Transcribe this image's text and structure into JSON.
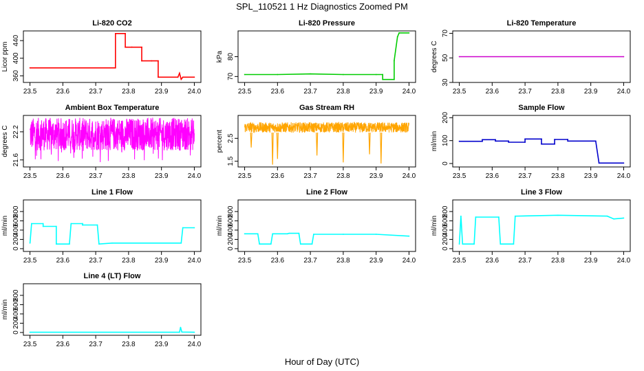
{
  "figure": {
    "title": "SPL_110521  1 Hz Diagnostics Zoomed PM",
    "xlabel": "Hour of Day (UTC)"
  },
  "chart_data": [
    {
      "type": "line",
      "title": "Li-820 CO2",
      "ylabel": "Licor ppm",
      "color": "#ff0000",
      "xlim": [
        23.5,
        24.0
      ],
      "x_ticks": [
        "23.5",
        "23.6",
        "23.7",
        "23.8",
        "23.9",
        "24.0"
      ],
      "ylim": [
        345,
        462
      ],
      "y_ticks": [
        360,
        400,
        440
      ],
      "x": [
        23.5,
        23.76,
        23.76,
        23.79,
        23.79,
        23.81,
        23.81,
        23.84,
        23.84,
        23.87,
        23.87,
        23.89,
        23.89,
        23.95,
        23.955,
        23.96,
        23.965,
        24.0
      ],
      "y": [
        378,
        378,
        456,
        456,
        425,
        425,
        425,
        425,
        394,
        394,
        394,
        394,
        357,
        357,
        366,
        352,
        357,
        357
      ]
    },
    {
      "type": "line",
      "title": "Li-820 Pressure",
      "ylabel": "kPa",
      "color": "#00cc00",
      "xlim": [
        23.5,
        24.0
      ],
      "x_ticks": [
        "23.5",
        "23.6",
        "23.7",
        "23.8",
        "23.9",
        "24.0"
      ],
      "ylim": [
        67,
        93
      ],
      "y_ticks": [
        70,
        80
      ],
      "x": [
        23.5,
        23.6,
        23.7,
        23.8,
        23.9,
        23.92,
        23.92,
        23.955,
        23.955,
        23.965,
        23.97,
        24.0
      ],
      "y": [
        71,
        71,
        71.3,
        71,
        71,
        71,
        68.5,
        68.5,
        78,
        90,
        92,
        92
      ]
    },
    {
      "type": "line",
      "title": "Li-820 Temperature",
      "ylabel": "degrees C",
      "color": "#cc00cc",
      "xlim": [
        23.5,
        24.0
      ],
      "x_ticks": [
        "23.5",
        "23.6",
        "23.7",
        "23.8",
        "23.9",
        "24.0"
      ],
      "ylim": [
        30,
        72
      ],
      "y_ticks": [
        30,
        50,
        70
      ],
      "x": [
        23.5,
        24.0
      ],
      "y": [
        51,
        51
      ]
    },
    {
      "type": "line",
      "title": "Ambient Box Temperature",
      "ylabel": "degrees C",
      "color": "#ff00ff",
      "xlim": [
        23.5,
        24.0
      ],
      "x_ticks": [
        "23.5",
        "23.6",
        "23.7",
        "23.8",
        "23.9",
        "24.0"
      ],
      "ylim": [
        21.45,
        22.55
      ],
      "y_ticks": [
        21.6,
        22.2
      ],
      "band": {
        "low": 21.8,
        "high": 22.5,
        "min_spike": 21.55
      },
      "x": [
        23.5,
        24.0
      ],
      "y": [
        22.15,
        22.15
      ]
    },
    {
      "type": "line",
      "title": "Gas Stream RH",
      "ylabel": "percent",
      "color": "#ffa500",
      "xlim": [
        23.5,
        24.0
      ],
      "x_ticks": [
        "23.5",
        "23.6",
        "23.7",
        "23.8",
        "23.9",
        "24.0"
      ],
      "ylim": [
        1.25,
        3.5
      ],
      "y_ticks": [
        1.5,
        2.5
      ],
      "band": {
        "low": 2.75,
        "high": 3.2
      },
      "dips": [
        {
          "x": 23.52,
          "y": 2.1
        },
        {
          "x": 23.585,
          "y": 1.35
        },
        {
          "x": 23.6,
          "y": 1.6
        },
        {
          "x": 23.72,
          "y": 1.75
        },
        {
          "x": 23.8,
          "y": 1.45
        },
        {
          "x": 23.88,
          "y": 1.8
        },
        {
          "x": 23.915,
          "y": 1.4
        }
      ],
      "x": [
        23.5,
        24.0
      ],
      "y": [
        2.95,
        2.95
      ]
    },
    {
      "type": "line",
      "title": "Sample Flow",
      "ylabel": "ml/min",
      "color": "#0000cc",
      "xlim": [
        23.5,
        24.0
      ],
      "x_ticks": [
        "23.5",
        "23.6",
        "23.7",
        "23.8",
        "23.9",
        "24.0"
      ],
      "ylim": [
        -15,
        210
      ],
      "y_ticks": [
        0,
        100,
        200
      ],
      "x": [
        23.5,
        23.57,
        23.57,
        23.61,
        23.61,
        23.65,
        23.65,
        23.7,
        23.7,
        23.75,
        23.75,
        23.79,
        23.79,
        23.83,
        23.83,
        23.915,
        23.925,
        24.0
      ],
      "y": [
        97,
        97,
        104,
        104,
        98,
        98,
        93,
        93,
        107,
        107,
        85,
        85,
        105,
        105,
        98,
        98,
        2,
        2
      ]
    },
    {
      "type": "line",
      "title": "Line 1 Flow",
      "ylabel": "ml/min",
      "color": "#00ffff",
      "xlim": [
        23.5,
        24.0
      ],
      "x_ticks": [
        "23.5",
        "23.6",
        "23.7",
        "23.8",
        "23.9",
        "24.0"
      ],
      "ylim": [
        -60,
        1050
      ],
      "y_ticks": [
        0,
        200,
        400,
        600,
        800
      ],
      "x": [
        23.5,
        23.505,
        23.54,
        23.54,
        23.58,
        23.58,
        23.62,
        23.625,
        23.66,
        23.66,
        23.705,
        23.71,
        23.75,
        23.96,
        23.965,
        24.0
      ],
      "y": [
        120,
        540,
        540,
        480,
        480,
        100,
        100,
        540,
        540,
        510,
        510,
        100,
        120,
        120,
        450,
        450
      ]
    },
    {
      "type": "line",
      "title": "Line 2 Flow",
      "ylabel": "ml/min",
      "color": "#00ffff",
      "xlim": [
        23.5,
        24.0
      ],
      "x_ticks": [
        "23.5",
        "23.6",
        "23.7",
        "23.8",
        "23.9",
        "24.0"
      ],
      "ylim": [
        -60,
        1050
      ],
      "y_ticks": [
        0,
        200,
        400,
        600,
        800
      ],
      "x": [
        23.5,
        23.54,
        23.545,
        23.58,
        23.585,
        23.63,
        23.635,
        23.665,
        23.67,
        23.705,
        23.71,
        23.8,
        23.9,
        24.0
      ],
      "y": [
        320,
        320,
        100,
        100,
        320,
        320,
        330,
        330,
        100,
        100,
        310,
        310,
        310,
        270
      ]
    },
    {
      "type": "line",
      "title": "Line 3 Flow",
      "ylabel": "ml/min",
      "color": "#00ffff",
      "xlim": [
        23.5,
        24.0
      ],
      "x_ticks": [
        "23.5",
        "23.6",
        "23.7",
        "23.8",
        "23.9",
        "24.0"
      ],
      "ylim": [
        -60,
        1050
      ],
      "y_ticks": [
        0,
        200,
        400,
        600,
        800
      ],
      "x": [
        23.5,
        23.505,
        23.51,
        23.545,
        23.55,
        23.62,
        23.625,
        23.665,
        23.67,
        23.8,
        23.95,
        23.97,
        24.0
      ],
      "y": [
        100,
        700,
        100,
        100,
        680,
        680,
        100,
        100,
        700,
        720,
        700,
        640,
        660
      ]
    },
    {
      "type": "line",
      "title": "Line 4 (LT) Flow",
      "ylabel": "ml/min",
      "color": "#00ffff",
      "xlim": [
        23.5,
        24.0
      ],
      "x_ticks": [
        "23.5",
        "23.6",
        "23.7",
        "23.8",
        "23.9",
        "24.0"
      ],
      "ylim": [
        -60,
        1050
      ],
      "y_ticks": [
        0,
        200,
        400,
        600,
        800
      ],
      "x": [
        23.5,
        23.955,
        23.958,
        23.962,
        24.0
      ],
      "y": [
        5,
        5,
        110,
        10,
        5
      ]
    }
  ]
}
